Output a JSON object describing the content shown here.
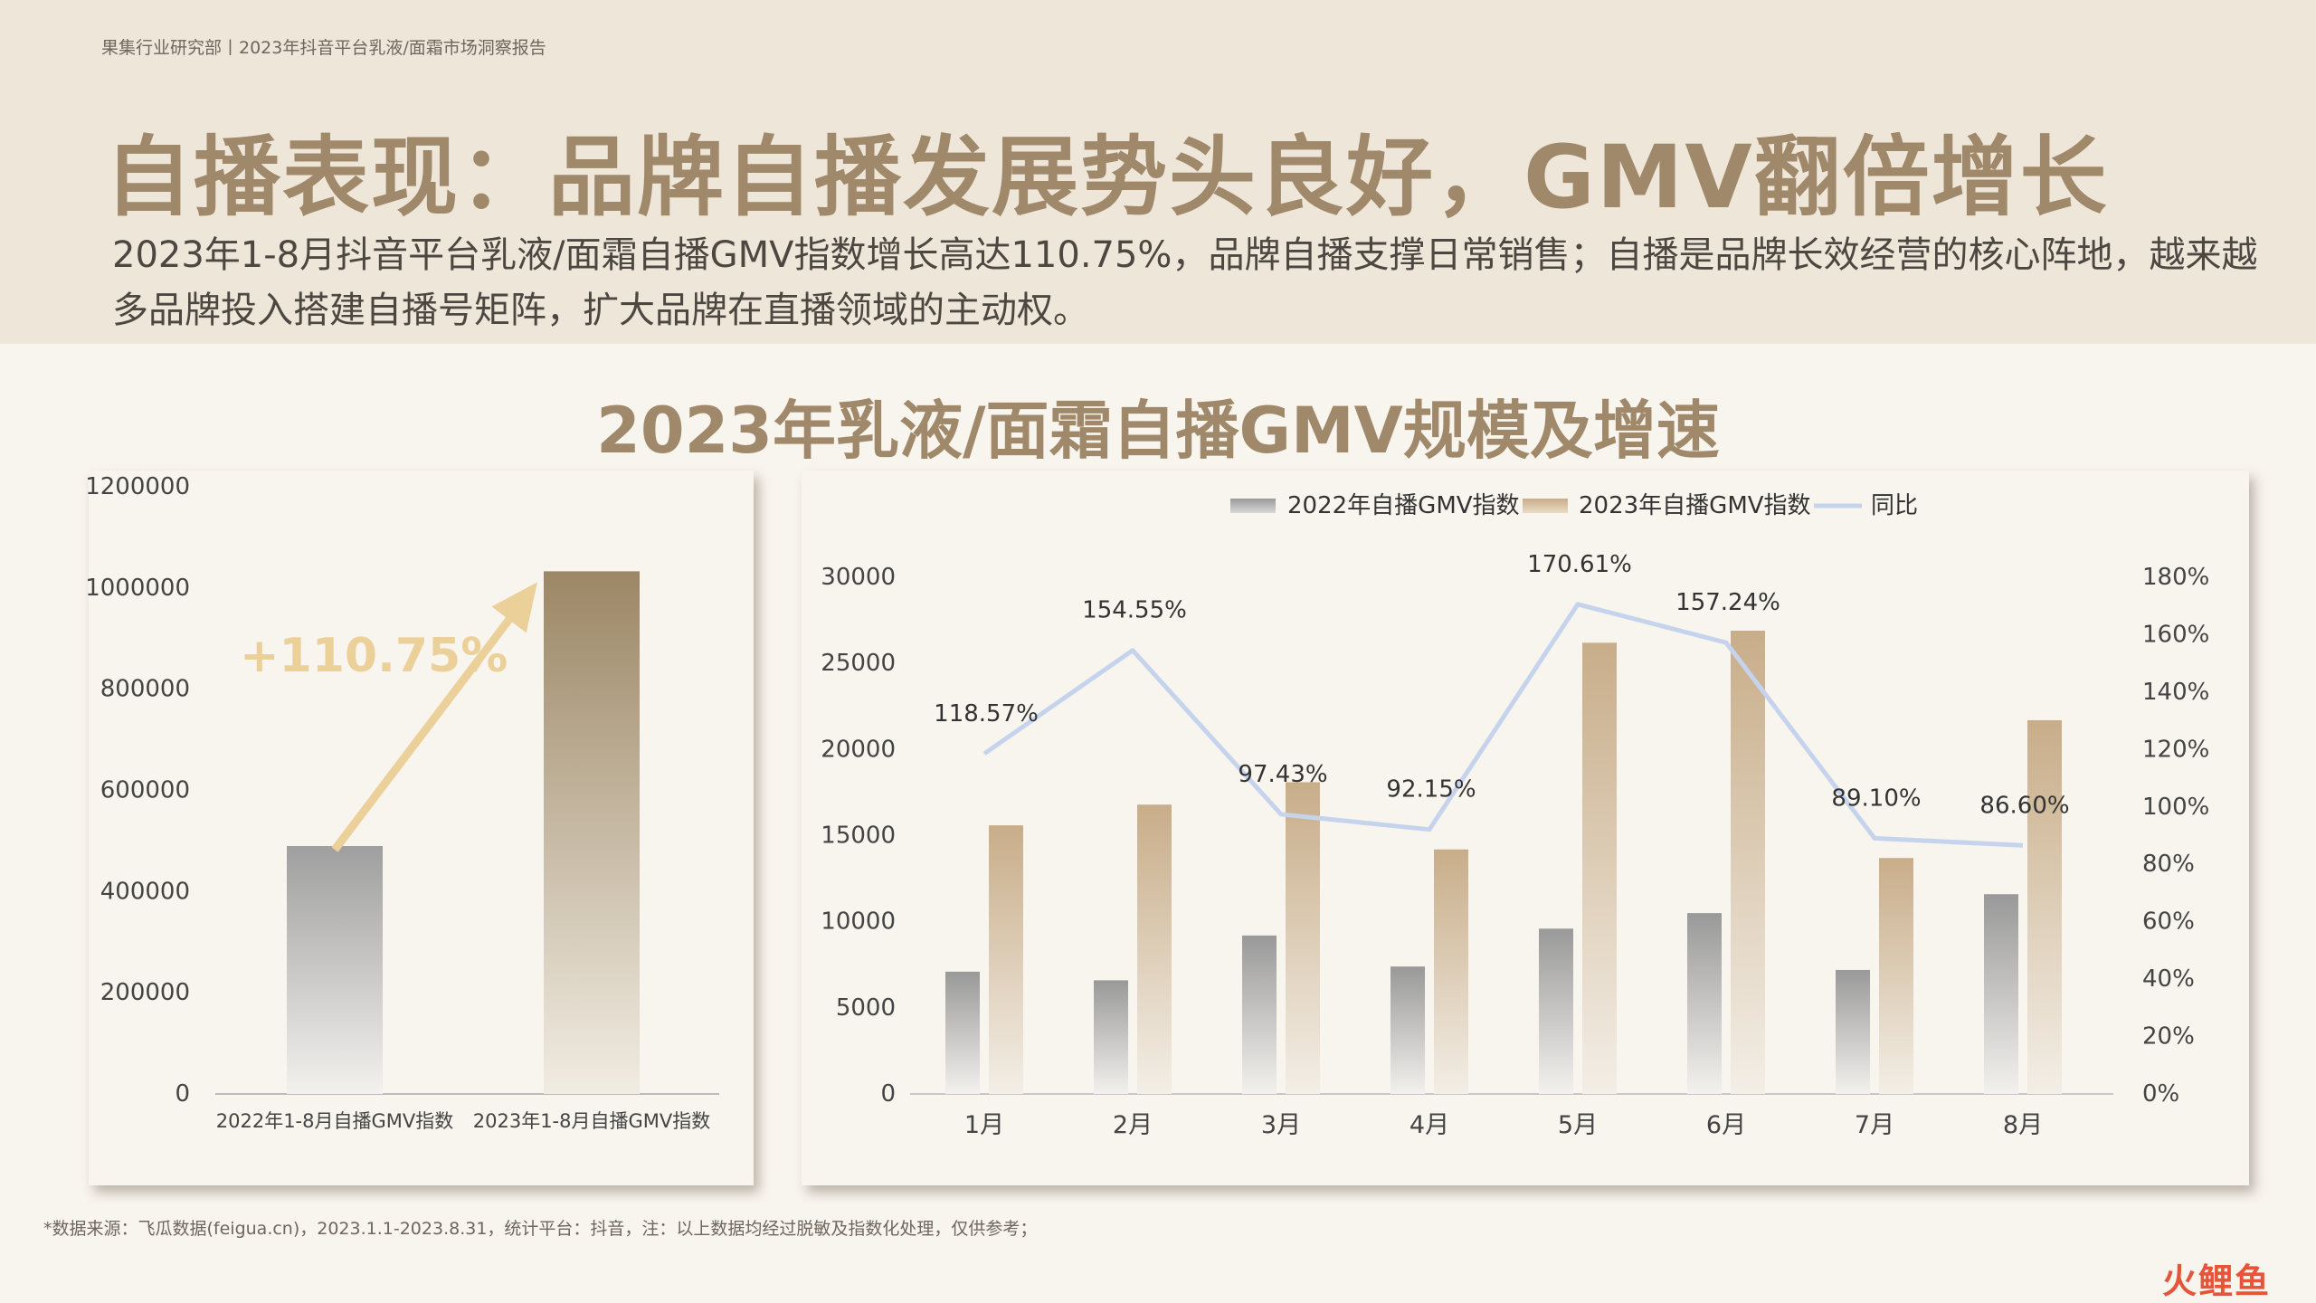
{
  "header": {
    "breadcrumb": "果集行业研究部丨2023年抖音平台乳液/面霜市场洞察报告",
    "headline": "自播表现：品牌自播发展势头良好，GMV翻倍增长",
    "summary": "2023年1-8月抖音平台乳液/面霜自播GMV指数增长高达110.75%，品牌自播支撑日常销售；自播是品牌长效经营的核心阵地，越来越多品牌投入搭建自播号矩阵，扩大品牌在直播领域的主动权。"
  },
  "chart_title": "2023年乳液/面霜自播GMV规模及增速",
  "footer": {
    "source": "*数据来源：飞瓜数据(feigua.cn)，2023.1.1-2023.8.31，统计平台：抖音，注：以上数据均经过脱敏及指数化处理，仅供参考；",
    "watermark": "火鲤鱼"
  },
  "colors": {
    "accent": "#a0896a",
    "gray_bar": "#a3a3a3",
    "tan_bar": "#cbb08d",
    "line": "#c5d4ec",
    "arrow": "#ecd09a"
  },
  "chart_data": [
    {
      "type": "bar",
      "categories": [
        "2022年1-8月自播GMV指数",
        "2023年1-8月自播GMV指数"
      ],
      "values": [
        490000,
        1033000
      ],
      "ylim": [
        0,
        1200000
      ],
      "yticks": [
        "0",
        "200000",
        "400000",
        "600000",
        "800000",
        "1000000",
        "1200000"
      ],
      "annotation": "+110.75%"
    },
    {
      "type": "bar",
      "categories": [
        "1月",
        "2月",
        "3月",
        "4月",
        "5月",
        "6月",
        "7月",
        "8月"
      ],
      "series": [
        {
          "name": "2022年自播GMV指数",
          "type": "bar",
          "values": [
            7100,
            6600,
            9200,
            7400,
            9600,
            10500,
            7200,
            11600
          ]
        },
        {
          "name": "2023年自播GMV指数",
          "type": "bar",
          "values": [
            15600,
            16800,
            18100,
            14200,
            26200,
            26900,
            13700,
            21700
          ]
        },
        {
          "name": "同比",
          "type": "line",
          "axis": "right",
          "values": [
            118.57,
            154.55,
            97.43,
            92.15,
            170.61,
            157.24,
            89.1,
            86.6
          ],
          "labels": [
            "118.57%",
            "154.55%",
            "97.43%",
            "92.15%",
            "170.61%",
            "157.24%",
            "89.10%",
            "86.60%"
          ]
        }
      ],
      "ylim": [
        0,
        30000
      ],
      "yticks": [
        "0",
        "5000",
        "10000",
        "15000",
        "20000",
        "25000",
        "30000"
      ],
      "y2lim": [
        0,
        180
      ],
      "y2ticks": [
        "0%",
        "20%",
        "40%",
        "60%",
        "80%",
        "100%",
        "120%",
        "140%",
        "160%",
        "180%"
      ],
      "legend": "top"
    }
  ]
}
